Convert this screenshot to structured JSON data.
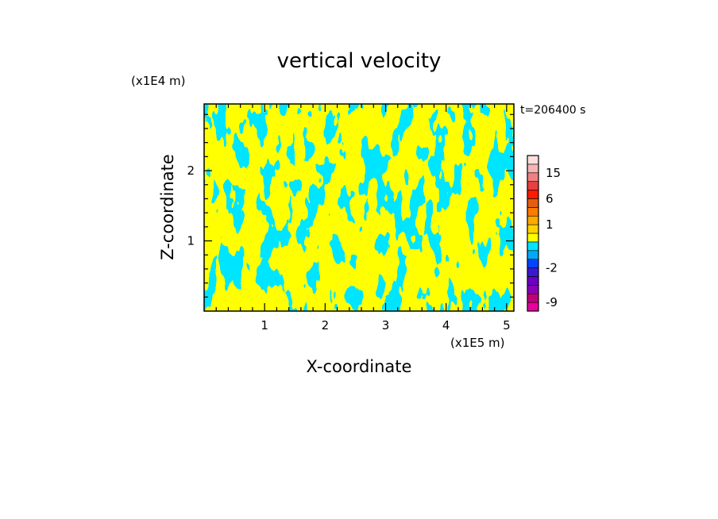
{
  "chart_data": {
    "type": "heatmap",
    "title": "vertical velocity",
    "xlabel": "X-coordinate",
    "ylabel": "Z-coordinate",
    "x_unit": "(x1E5 m)",
    "y_unit": "(x1E4 m)",
    "time_label": "t=206400 s",
    "xlim": [
      0,
      5.12
    ],
    "ylim": [
      0,
      2.95
    ],
    "x_ticks": [
      "1",
      "2",
      "3",
      "4",
      "5"
    ],
    "x_tick_values": [
      1,
      2,
      3,
      4,
      5
    ],
    "y_ticks": [
      "1",
      "2"
    ],
    "y_tick_values": [
      1,
      2
    ],
    "field_colors": {
      "positive": "#ffff00",
      "negative": "#00e5ff"
    },
    "colorbar": {
      "tick_labels": [
        "15",
        "6",
        "1",
        "-2",
        "-9"
      ],
      "tick_values": [
        15,
        6,
        1,
        -2,
        -9
      ],
      "levels": [
        -12,
        -9,
        -6,
        -4,
        -3,
        -2,
        -1,
        -0.5,
        0,
        0.5,
        1,
        2,
        4,
        6,
        9,
        12,
        15,
        18,
        22
      ],
      "colors": [
        "#e600a0",
        "#c0007a",
        "#8a00b5",
        "#6a00c8",
        "#3a1ad0",
        "#0044ff",
        "#00aaff",
        "#00e5ff",
        "#ffff00",
        "#ffd400",
        "#ffaa00",
        "#ff7a00",
        "#e06010",
        "#ff1a00",
        "#e64040",
        "#f08080",
        "#f7b4b4",
        "#fde0de"
      ]
    }
  }
}
